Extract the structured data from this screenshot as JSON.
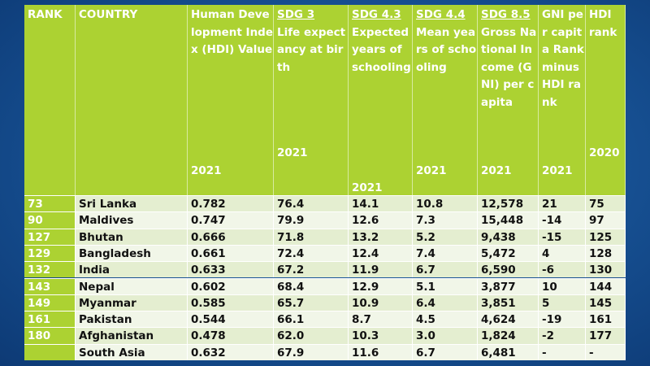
{
  "header": {
    "rank": "RANK",
    "country": "COUNTRY",
    "hdi": {
      "label": "Human Development Index (HDI) Value",
      "year": "2021"
    },
    "sdg3": {
      "sdg": "SDG 3",
      "label": "Life expectancy at birth",
      "year": "2021"
    },
    "sdg43": {
      "sdg": "SDG 4.3",
      "label": "Expected years of schooling",
      "year": "2021"
    },
    "sdg44": {
      "sdg": "SDG 4.4",
      "label": "Mean years of schooling",
      "year": "2021"
    },
    "sdg85": {
      "sdg": "SDG 8.5",
      "label": "Gross National Income (GNI) per capita",
      "year": "2021"
    },
    "gni": {
      "label": "GNI per capita Rank minus HDI rank",
      "year": "2021"
    },
    "hdirank": {
      "label": "HDI rank",
      "year": "2020"
    }
  },
  "rows": [
    {
      "rank": "73",
      "country": "Sri Lanka",
      "hdi": "0.782",
      "life": "76.4",
      "exp": "14.1",
      "mean": "10.8",
      "gni": "12,578",
      "diff": "21",
      "hdirank": "75"
    },
    {
      "rank": "90",
      "country": "Maldives",
      "hdi": "0.747",
      "life": "79.9",
      "exp": "12.6",
      "mean": "7.3",
      "gni": "15,448",
      "diff": "-14",
      "hdirank": "97"
    },
    {
      "rank": "127",
      "country": "Bhutan",
      "hdi": "0.666",
      "life": "71.8",
      "exp": "13.2",
      "mean": "5.2",
      "gni": "9,438",
      "diff": "-15",
      "hdirank": "125"
    },
    {
      "rank": "129",
      "country": "Bangladesh",
      "hdi": "0.661",
      "life": "72.4",
      "exp": "12.4",
      "mean": "7.4",
      "gni": "5,472",
      "diff": "4",
      "hdirank": "128"
    },
    {
      "rank": "132",
      "country": "India",
      "hdi": "0.633",
      "life": "67.2",
      "exp": "11.9",
      "mean": "6.7",
      "gni": "6,590",
      "diff": "-6",
      "hdirank": "130"
    },
    {
      "rank": "143",
      "country": "Nepal",
      "hdi": "0.602",
      "life": "68.4",
      "exp": "12.9",
      "mean": "5.1",
      "gni": "3,877",
      "diff": "10",
      "hdirank": "144"
    },
    {
      "rank": "149",
      "country": "Myanmar",
      "hdi": "0.585",
      "life": "65.7",
      "exp": "10.9",
      "mean": "6.4",
      "gni": "3,851",
      "diff": "5",
      "hdirank": "145"
    },
    {
      "rank": "161",
      "country": "Pakistan",
      "hdi": "0.544",
      "life": "66.1",
      "exp": "8.7",
      "mean": "4.5",
      "gni": "4,624",
      "diff": "-19",
      "hdirank": "161"
    },
    {
      "rank": "180",
      "country": "Afghanistan",
      "hdi": "0.478",
      "life": "62.0",
      "exp": "10.3",
      "mean": "3.0",
      "gni": "1,824",
      "diff": "-2",
      "hdirank": "177"
    },
    {
      "rank": "",
      "country": "South Asia",
      "hdi": "0.632",
      "life": "67.9",
      "exp": "11.6",
      "mean": "6.7",
      "gni": "6,481",
      "diff": "-",
      "hdirank": "-"
    }
  ]
}
